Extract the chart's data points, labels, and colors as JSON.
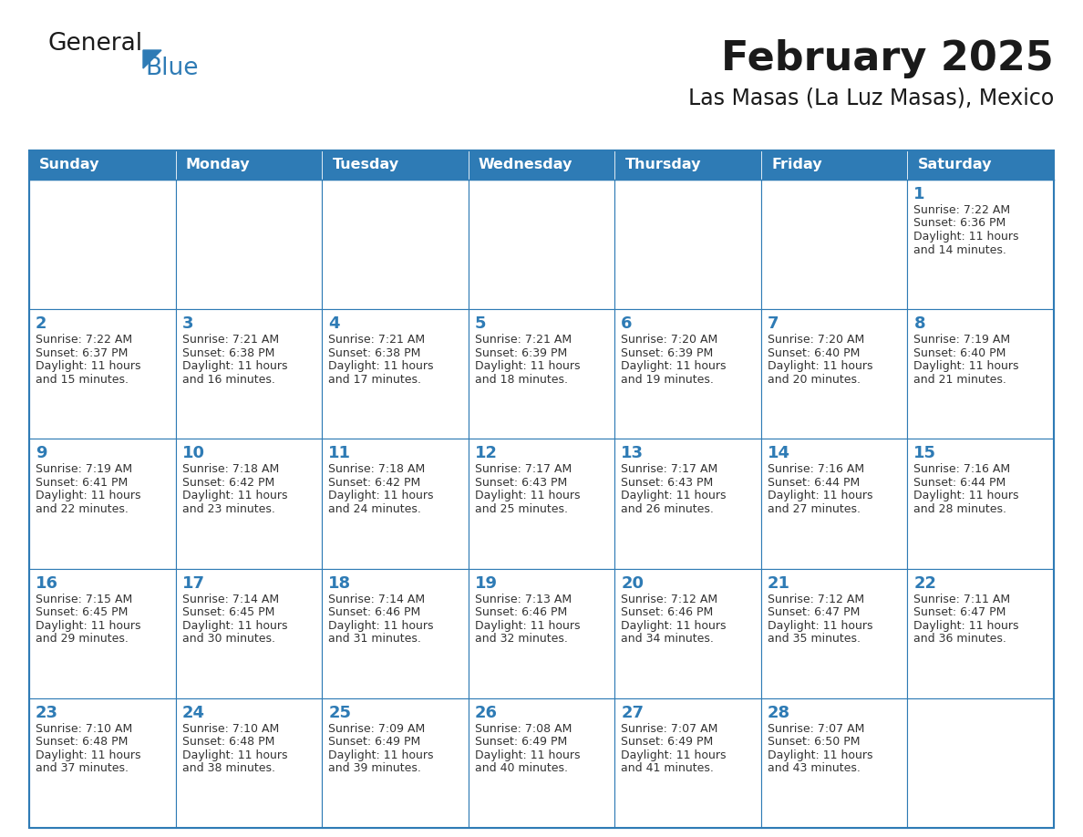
{
  "title": "February 2025",
  "subtitle": "Las Masas (La Luz Masas), Mexico",
  "days_of_week": [
    "Sunday",
    "Monday",
    "Tuesday",
    "Wednesday",
    "Thursday",
    "Friday",
    "Saturday"
  ],
  "header_bg": "#2E7BB5",
  "header_text": "#FFFFFF",
  "cell_bg": "#FFFFFF",
  "border_color": "#2E7BB5",
  "title_color": "#1a1a1a",
  "subtitle_color": "#1a1a1a",
  "day_number_color": "#2E7BB5",
  "cell_text_color": "#333333",
  "calendar_data": [
    [
      null,
      null,
      null,
      null,
      null,
      null,
      {
        "day": 1,
        "sunrise": "7:22 AM",
        "sunset": "6:36 PM",
        "daylight": "11 hours and 14 minutes."
      }
    ],
    [
      {
        "day": 2,
        "sunrise": "7:22 AM",
        "sunset": "6:37 PM",
        "daylight": "11 hours and 15 minutes."
      },
      {
        "day": 3,
        "sunrise": "7:21 AM",
        "sunset": "6:38 PM",
        "daylight": "11 hours and 16 minutes."
      },
      {
        "day": 4,
        "sunrise": "7:21 AM",
        "sunset": "6:38 PM",
        "daylight": "11 hours and 17 minutes."
      },
      {
        "day": 5,
        "sunrise": "7:21 AM",
        "sunset": "6:39 PM",
        "daylight": "11 hours and 18 minutes."
      },
      {
        "day": 6,
        "sunrise": "7:20 AM",
        "sunset": "6:39 PM",
        "daylight": "11 hours and 19 minutes."
      },
      {
        "day": 7,
        "sunrise": "7:20 AM",
        "sunset": "6:40 PM",
        "daylight": "11 hours and 20 minutes."
      },
      {
        "day": 8,
        "sunrise": "7:19 AM",
        "sunset": "6:40 PM",
        "daylight": "11 hours and 21 minutes."
      }
    ],
    [
      {
        "day": 9,
        "sunrise": "7:19 AM",
        "sunset": "6:41 PM",
        "daylight": "11 hours and 22 minutes."
      },
      {
        "day": 10,
        "sunrise": "7:18 AM",
        "sunset": "6:42 PM",
        "daylight": "11 hours and 23 minutes."
      },
      {
        "day": 11,
        "sunrise": "7:18 AM",
        "sunset": "6:42 PM",
        "daylight": "11 hours and 24 minutes."
      },
      {
        "day": 12,
        "sunrise": "7:17 AM",
        "sunset": "6:43 PM",
        "daylight": "11 hours and 25 minutes."
      },
      {
        "day": 13,
        "sunrise": "7:17 AM",
        "sunset": "6:43 PM",
        "daylight": "11 hours and 26 minutes."
      },
      {
        "day": 14,
        "sunrise": "7:16 AM",
        "sunset": "6:44 PM",
        "daylight": "11 hours and 27 minutes."
      },
      {
        "day": 15,
        "sunrise": "7:16 AM",
        "sunset": "6:44 PM",
        "daylight": "11 hours and 28 minutes."
      }
    ],
    [
      {
        "day": 16,
        "sunrise": "7:15 AM",
        "sunset": "6:45 PM",
        "daylight": "11 hours and 29 minutes."
      },
      {
        "day": 17,
        "sunrise": "7:14 AM",
        "sunset": "6:45 PM",
        "daylight": "11 hours and 30 minutes."
      },
      {
        "day": 18,
        "sunrise": "7:14 AM",
        "sunset": "6:46 PM",
        "daylight": "11 hours and 31 minutes."
      },
      {
        "day": 19,
        "sunrise": "7:13 AM",
        "sunset": "6:46 PM",
        "daylight": "11 hours and 32 minutes."
      },
      {
        "day": 20,
        "sunrise": "7:12 AM",
        "sunset": "6:46 PM",
        "daylight": "11 hours and 34 minutes."
      },
      {
        "day": 21,
        "sunrise": "7:12 AM",
        "sunset": "6:47 PM",
        "daylight": "11 hours and 35 minutes."
      },
      {
        "day": 22,
        "sunrise": "7:11 AM",
        "sunset": "6:47 PM",
        "daylight": "11 hours and 36 minutes."
      }
    ],
    [
      {
        "day": 23,
        "sunrise": "7:10 AM",
        "sunset": "6:48 PM",
        "daylight": "11 hours and 37 minutes."
      },
      {
        "day": 24,
        "sunrise": "7:10 AM",
        "sunset": "6:48 PM",
        "daylight": "11 hours and 38 minutes."
      },
      {
        "day": 25,
        "sunrise": "7:09 AM",
        "sunset": "6:49 PM",
        "daylight": "11 hours and 39 minutes."
      },
      {
        "day": 26,
        "sunrise": "7:08 AM",
        "sunset": "6:49 PM",
        "daylight": "11 hours and 40 minutes."
      },
      {
        "day": 27,
        "sunrise": "7:07 AM",
        "sunset": "6:49 PM",
        "daylight": "11 hours and 41 minutes."
      },
      {
        "day": 28,
        "sunrise": "7:07 AM",
        "sunset": "6:50 PM",
        "daylight": "11 hours and 43 minutes."
      },
      null
    ]
  ],
  "logo_text1": "General",
  "logo_text2": "Blue",
  "logo_color1": "#1a1a1a",
  "logo_color2": "#2E7BB5",
  "logo_triangle_color": "#2E7BB5",
  "fig_width": 11.88,
  "fig_height": 9.18,
  "dpi": 100
}
